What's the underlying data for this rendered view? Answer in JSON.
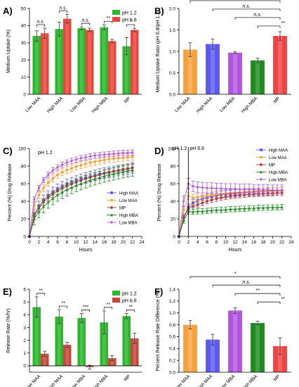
{
  "chart_data": [
    {
      "id": "A",
      "panel_label": "A)",
      "type": "bar",
      "categories": [
        "Low MAA",
        "High MAA",
        "Low MBA",
        "High MBA",
        "MP"
      ],
      "series": [
        {
          "name": "pH 1.2",
          "color": "#2db52d",
          "values": [
            34,
            38,
            38.5,
            39,
            28
          ],
          "errors": [
            3,
            4,
            0.8,
            1.5,
            5
          ]
        },
        {
          "name": "pH 6.8",
          "color": "#e8453c",
          "values": [
            35.5,
            44,
            37.5,
            31,
            37.5
          ],
          "errors": [
            3,
            2.5,
            1,
            1,
            1
          ]
        }
      ],
      "ylabel": "Medium Uptake (%)",
      "ylim": [
        0,
        50
      ],
      "yticks": [
        0,
        10,
        20,
        30,
        40,
        50
      ],
      "significance": [
        {
          "i": 0,
          "label": "n.s."
        },
        {
          "i": 1,
          "label": "n.s."
        },
        {
          "i": 2,
          "label": "n.s."
        },
        {
          "i": 3,
          "label": "**"
        },
        {
          "i": 4,
          "label": "*"
        }
      ],
      "legend": "top-right"
    },
    {
      "id": "B",
      "panel_label": "B)",
      "type": "bar",
      "categories": [
        "Low MAA",
        "High MAA",
        "Low MBA",
        "High MBA",
        "MP"
      ],
      "colors": [
        "#f7a13d",
        "#5a5af2",
        "#b155e0",
        "#1f8a1f",
        "#ee4444"
      ],
      "values": [
        1.04,
        1.17,
        0.97,
        0.79,
        1.36
      ],
      "errors": [
        0.16,
        0.12,
        0.02,
        0.05,
        0.1
      ],
      "ylabel": "Medium Uptake Ratio (pH 6.8/pH 1.2)",
      "ylim": [
        0,
        2.0
      ],
      "yticks": [
        0.0,
        0.5,
        1.0,
        1.5,
        2.0
      ],
      "significance": [
        {
          "from": 0,
          "to": 4,
          "label": "n.s."
        },
        {
          "from": 1,
          "to": 4,
          "label": "n.s."
        },
        {
          "from": 2,
          "to": 4,
          "label": "n.s."
        },
        {
          "from": 3,
          "to": 4,
          "label": "**"
        }
      ]
    },
    {
      "id": "C",
      "panel_label": "C)",
      "type": "line",
      "annotation": "pH 1.2",
      "x": [
        0,
        1,
        2,
        3,
        4,
        5,
        6,
        7,
        8,
        9,
        10,
        11,
        12,
        13,
        14,
        15,
        16,
        17,
        18,
        19,
        20,
        21,
        22
      ],
      "series": [
        {
          "name": "High MAA",
          "color": "#5a5af2",
          "marker": "square",
          "values": [
            0,
            25,
            34,
            41,
            46,
            50,
            53.5,
            56.5,
            59,
            61,
            63,
            65,
            66.5,
            68,
            69.5,
            71,
            72,
            73,
            74,
            75,
            76,
            77,
            78
          ],
          "error": 6
        },
        {
          "name": "Low MAA",
          "color": "#f7a13d",
          "marker": "circle",
          "values": [
            0,
            35,
            47,
            55,
            61,
            66,
            70,
            73,
            75.5,
            77.5,
            79.5,
            81,
            82.5,
            84,
            85,
            86,
            87,
            88,
            88.5,
            89,
            89.5,
            90,
            90.5
          ],
          "error": 4
        },
        {
          "name": "MP",
          "color": "#b33a3a",
          "marker": "circle",
          "values": [
            0,
            23,
            32,
            39,
            44,
            48,
            51.5,
            54.5,
            57,
            59.5,
            61.5,
            63.5,
            65.5,
            67,
            68.5,
            70,
            71.5,
            72.5,
            74,
            75,
            76,
            77,
            78
          ],
          "error": 4
        },
        {
          "name": "High MBA",
          "color": "#1f8a1f",
          "marker": "triangle",
          "values": [
            0,
            20,
            28,
            34,
            39,
            43,
            47,
            50,
            53,
            55.5,
            58,
            60,
            62,
            64,
            65.5,
            67,
            68.5,
            70,
            71,
            72.5,
            73.5,
            74.5,
            75.5
          ],
          "error": 7
        },
        {
          "name": "Low MBA",
          "color": "#b155e0",
          "marker": "diamond",
          "values": [
            0,
            42,
            55,
            64,
            70,
            75,
            78.5,
            81.5,
            84,
            86,
            87.5,
            89,
            90,
            91,
            92,
            92.5,
            93,
            93.5,
            94,
            94.5,
            95,
            95,
            95.5
          ],
          "error": 3
        }
      ],
      "xlabel": "Hours",
      "ylabel": "Percent (%) Drug Release",
      "xlim": [
        0,
        24
      ],
      "ylim": [
        0,
        100
      ],
      "xticks": [
        0,
        2,
        4,
        6,
        8,
        10,
        12,
        14,
        16,
        18,
        20,
        22,
        24
      ],
      "yticks": [
        0,
        20,
        40,
        60,
        80,
        100
      ],
      "legend": "bottom-right"
    },
    {
      "id": "D",
      "panel_label": "D)",
      "type": "line",
      "annotations": [
        "pH 1.2",
        "pH 6.8"
      ],
      "x": [
        0,
        1,
        2,
        3,
        4,
        5,
        6,
        7,
        8,
        9,
        10,
        11,
        12,
        13,
        14,
        15,
        16,
        17,
        18,
        19,
        20,
        21,
        22
      ],
      "series": [
        {
          "name": "High MAA",
          "color": "#5a5af2",
          "marker": "square",
          "values": [
            0,
            22,
            33,
            38,
            41,
            43,
            44.5,
            45.5,
            46.5,
            47.5,
            48,
            48.5,
            49,
            49.5,
            50,
            50,
            50.5,
            50.5,
            51,
            51,
            51.5,
            51.5,
            52
          ],
          "error": 4
        },
        {
          "name": "Low MAA",
          "color": "#f7a13d",
          "marker": "circle",
          "values": [
            0,
            30,
            46,
            44,
            44.5,
            45.5,
            46.5,
            47.5,
            48,
            48.5,
            49,
            49.5,
            50,
            50,
            50.5,
            50.5,
            51,
            51,
            51,
            51.5,
            51.5,
            51.5,
            52
          ],
          "error": 4
        },
        {
          "name": "MP",
          "color": "#b33a3a",
          "marker": "circle",
          "values": [
            0,
            21,
            32,
            34,
            36,
            38,
            40,
            41.5,
            43,
            44,
            45,
            46,
            46.5,
            47,
            47.5,
            48,
            48,
            48.5,
            48.5,
            49,
            49,
            49.5,
            49.5
          ],
          "error": 3
        },
        {
          "name": "High MBA",
          "color": "#1f8a1f",
          "marker": "triangle",
          "values": [
            0,
            18,
            28,
            28,
            28.5,
            28.5,
            29,
            29.5,
            30,
            30,
            30.5,
            31,
            31,
            31.5,
            31.5,
            32,
            32,
            32.5,
            32.5,
            33,
            33,
            33,
            33.5
          ],
          "error": 3
        },
        {
          "name": "Low MBA",
          "color": "#b155e0",
          "marker": "diamond",
          "values": [
            0,
            40,
            60,
            57,
            56,
            55.5,
            55,
            55,
            54.5,
            54.5,
            54,
            54,
            54,
            53.5,
            53.5,
            53.5,
            53,
            53,
            53,
            53,
            52.5,
            52.5,
            52.5
          ],
          "error": 6
        }
      ],
      "xlabel": "Hours",
      "ylabel": "Percent (%) Drug Release",
      "xlim": [
        0,
        24
      ],
      "ylim": [
        0,
        100
      ],
      "xticks": [
        0,
        2,
        4,
        6,
        8,
        10,
        12,
        14,
        16,
        18,
        20,
        22,
        24
      ],
      "yticks": [
        0,
        20,
        40,
        60,
        80,
        100
      ],
      "legend": "top-right"
    },
    {
      "id": "E",
      "panel_label": "E)",
      "type": "bar",
      "categories": [
        "Low MAA",
        "High MAA",
        "Low MBA",
        "High MBA",
        "MP"
      ],
      "series": [
        {
          "name": "pH 1.2",
          "color": "#2db52d",
          "values": [
            4.6,
            3.85,
            3.75,
            3.4,
            3.9
          ],
          "errors": [
            0.8,
            0.55,
            0.35,
            0.9,
            0.2
          ]
        },
        {
          "name": "pH 6.8",
          "color": "#c4473b",
          "values": [
            0.95,
            1.65,
            -0.1,
            0.6,
            2.15
          ],
          "errors": [
            0.2,
            0.2,
            0.15,
            0.2,
            0.4
          ]
        }
      ],
      "ylabel": "Release Rate (%/hr)",
      "ylim": [
        -0.5,
        6
      ],
      "yticks": [
        0,
        1,
        2,
        3,
        4,
        5,
        6
      ],
      "significance": [
        {
          "i": 0,
          "label": "**"
        },
        {
          "i": 1,
          "label": "**"
        },
        {
          "i": 2,
          "label": "***"
        },
        {
          "i": 3,
          "label": "**"
        },
        {
          "i": 4,
          "label": "**"
        }
      ],
      "legend": "top-right"
    },
    {
      "id": "F",
      "panel_label": "F)",
      "type": "bar",
      "categories": [
        "Low MAA",
        "High MAA",
        "Low MBA",
        "High MBA",
        "MP"
      ],
      "colors": [
        "#f7a13d",
        "#5a5af2",
        "#b155e0",
        "#1f8a1f",
        "#ee4444"
      ],
      "values": [
        0.8,
        0.55,
        1.04,
        0.83,
        0.44
      ],
      "errors": [
        0.07,
        0.09,
        0.05,
        0.03,
        0.14
      ],
      "ylabel": "Percent Release Rate Difference (%)",
      "ylim": [
        0,
        1.4
      ],
      "yticks": [
        0.0,
        0.2,
        0.4,
        0.6,
        0.8,
        1.0,
        1.2,
        1.4
      ],
      "significance": [
        {
          "from": 0,
          "to": 4,
          "label": "*"
        },
        {
          "from": 1,
          "to": 4,
          "label": "n.s."
        },
        {
          "from": 2,
          "to": 4,
          "label": "**"
        },
        {
          "from": 3,
          "to": 4,
          "label": "**"
        }
      ]
    }
  ]
}
